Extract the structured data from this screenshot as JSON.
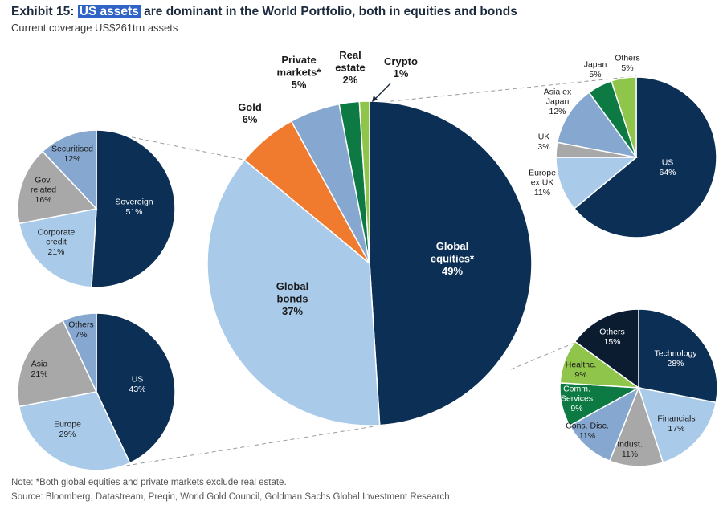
{
  "header": {
    "title_prefix": "Exhibit 15:",
    "title_highlight": "US assets",
    "title_rest": "are dominant in the World Portfolio, both in equities and bonds",
    "subtitle": "Current coverage US$261trn assets"
  },
  "footer": {
    "note": "Note: *Both global equities and private markets exclude real estate.",
    "source": "Source: Bloomberg, Datastream, Preqin, World Gold Council, Goldman Sachs Global Investment Research"
  },
  "colors": {
    "dark_navy": "#0c2f56",
    "light_blue": "#a9cbe9",
    "orange": "#f07b2f",
    "steel_blue": "#86a7cf",
    "dark_green": "#0c7a42",
    "light_green": "#8fc54a",
    "gray": "#a8a8a8",
    "black_navy": "#0b1c31",
    "callout_line": "#9a9a9a"
  },
  "chart_data": [
    {
      "id": "world-portfolio",
      "type": "pie",
      "slices": [
        {
          "label": [
            "Global",
            "equities*"
          ],
          "value": 49,
          "color": "#0c2f56"
        },
        {
          "label": [
            "Global",
            "bonds"
          ],
          "value": 37,
          "color": "#a9cbe9"
        },
        {
          "label": [
            "Gold"
          ],
          "value": 6,
          "color": "#f07b2f"
        },
        {
          "label": [
            "Private",
            "markets*"
          ],
          "value": 5,
          "color": "#86a7cf"
        },
        {
          "label": [
            "Real",
            "estate"
          ],
          "value": 2,
          "color": "#0c7a42"
        },
        {
          "label": [
            "Crypto"
          ],
          "value": 1,
          "color": "#8fc54a"
        }
      ]
    },
    {
      "id": "bonds-by-type",
      "type": "pie",
      "slices": [
        {
          "label": [
            "Sovereign"
          ],
          "value": 51,
          "color": "#0c2f56"
        },
        {
          "label": [
            "Corporate",
            "credit"
          ],
          "value": 21,
          "color": "#a9cbe9"
        },
        {
          "label": [
            "Gov.",
            "related"
          ],
          "value": 16,
          "color": "#a8a8a8"
        },
        {
          "label": [
            "Securitised"
          ],
          "value": 12,
          "color": "#86a7cf"
        }
      ]
    },
    {
      "id": "bonds-by-region",
      "type": "pie",
      "slices": [
        {
          "label": [
            "US"
          ],
          "value": 43,
          "color": "#0c2f56"
        },
        {
          "label": [
            "Europe"
          ],
          "value": 29,
          "color": "#a9cbe9"
        },
        {
          "label": [
            "Asia"
          ],
          "value": 21,
          "color": "#a8a8a8"
        },
        {
          "label": [
            "Others"
          ],
          "value": 7,
          "color": "#86a7cf"
        }
      ]
    },
    {
      "id": "equities-by-region",
      "type": "pie",
      "slices": [
        {
          "label": [
            "US"
          ],
          "value": 64,
          "color": "#0c2f56"
        },
        {
          "label": [
            "Europe",
            "ex UK"
          ],
          "value": 11,
          "color": "#a9cbe9"
        },
        {
          "label": [
            "UK"
          ],
          "value": 3,
          "color": "#a8a8a8"
        },
        {
          "label": [
            "Asia ex",
            "Japan"
          ],
          "value": 12,
          "color": "#86a7cf"
        },
        {
          "label": [
            "Japan"
          ],
          "value": 5,
          "color": "#0c7a42"
        },
        {
          "label": [
            "Others"
          ],
          "value": 5,
          "color": "#8fc54a"
        }
      ]
    },
    {
      "id": "equities-by-sector",
      "type": "pie",
      "slices": [
        {
          "label": [
            "Technology"
          ],
          "value": 28,
          "color": "#0c2f56"
        },
        {
          "label": [
            "Financials"
          ],
          "value": 17,
          "color": "#a9cbe9"
        },
        {
          "label": [
            "Indust."
          ],
          "value": 11,
          "color": "#a8a8a8"
        },
        {
          "label": [
            "Cons. Disc."
          ],
          "value": 11,
          "color": "#86a7cf"
        },
        {
          "label": [
            "Comm.",
            "Services"
          ],
          "value": 9,
          "color": "#0c7a42"
        },
        {
          "label": [
            "Healthc."
          ],
          "value": 9,
          "color": "#8fc54a"
        },
        {
          "label": [
            "Others"
          ],
          "value": 15,
          "color": "#0b1c31"
        }
      ]
    }
  ]
}
